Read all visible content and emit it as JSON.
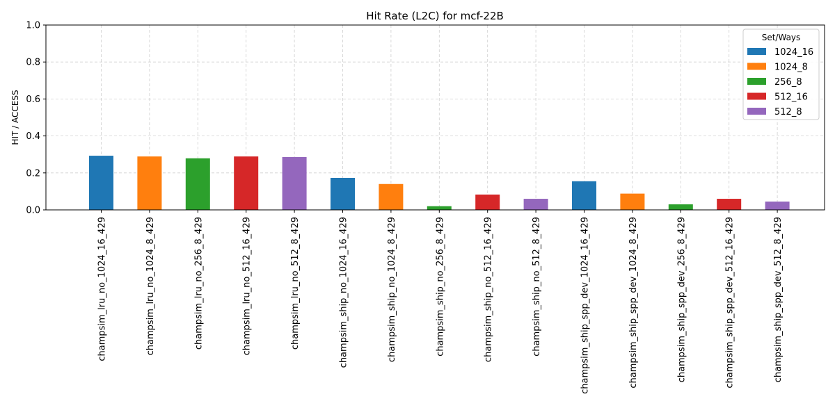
{
  "chart_data": {
    "type": "bar",
    "title": "Hit Rate (L2C) for mcf-22B",
    "xlabel": "",
    "ylabel": "HIT / ACCESS",
    "ylim": [
      0,
      1.0
    ],
    "yticks": [
      "0.0",
      "0.2",
      "0.4",
      "0.6",
      "0.8",
      "1.0"
    ],
    "grid": true,
    "legend_title": "Set/Ways",
    "legend_position": "top-right",
    "categories": [
      "champsim_lru_no_1024_16_429",
      "champsim_lru_no_1024_8_429",
      "champsim_lru_no_256_8_429",
      "champsim_lru_no_512_16_429",
      "champsim_lru_no_512_8_429",
      "champsim_ship_no_1024_16_429",
      "champsim_ship_no_1024_8_429",
      "champsim_ship_no_256_8_429",
      "champsim_ship_no_512_16_429",
      "champsim_ship_no_512_8_429",
      "champsim_ship_spp_dev_1024_16_429",
      "champsim_ship_spp_dev_1024_8_429",
      "champsim_ship_spp_dev_256_8_429",
      "champsim_ship_spp_dev_512_16_429",
      "champsim_ship_spp_dev_512_8_429"
    ],
    "values": [
      0.293,
      0.289,
      0.279,
      0.289,
      0.286,
      0.173,
      0.14,
      0.02,
      0.083,
      0.06,
      0.155,
      0.088,
      0.03,
      0.06,
      0.045
    ],
    "bar_groups": [
      "1024_16",
      "1024_8",
      "256_8",
      "512_16",
      "512_8",
      "1024_16",
      "1024_8",
      "256_8",
      "512_16",
      "512_8",
      "1024_16",
      "1024_8",
      "256_8",
      "512_16",
      "512_8"
    ],
    "legend": [
      {
        "name": "1024_16",
        "color": "#1f77b4"
      },
      {
        "name": "1024_8",
        "color": "#ff7f0e"
      },
      {
        "name": "256_8",
        "color": "#2ca02c"
      },
      {
        "name": "512_16",
        "color": "#d62728"
      },
      {
        "name": "512_8",
        "color": "#9467bd"
      }
    ]
  }
}
